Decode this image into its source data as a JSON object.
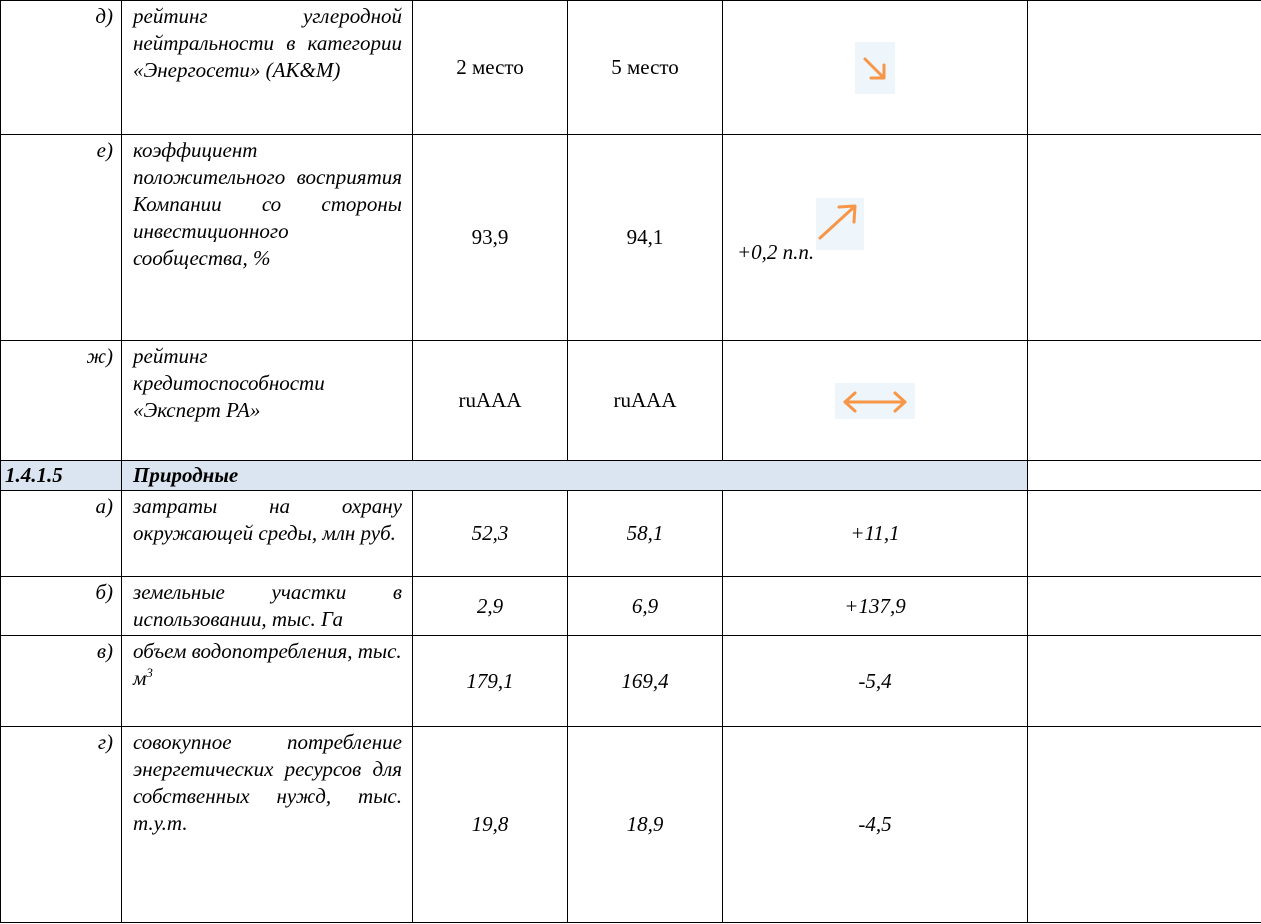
{
  "rows": [
    {
      "num": "д)",
      "desc": "рейтинг углеродной нейтральности в категории «Энергосети» (AK&M)",
      "prev": "2 место",
      "curr": "5 место",
      "change_text": "",
      "trend_icon": "arrow-down-right-icon"
    },
    {
      "num": "е)",
      "desc": "коэффициент положительного восприятия Компании со стороны инвестиционного сообщества, %",
      "prev": "93,9",
      "curr": "94,1",
      "change_text": "+0,2 п.п.",
      "trend_icon": "arrow-up-right-icon"
    },
    {
      "num": "ж)",
      "desc": "рейтинг кредитоспособности «Эксперт РА»",
      "prev": "ruAAA",
      "curr": "ruAAA",
      "change_text": "",
      "trend_icon": "arrow-left-right-icon"
    }
  ],
  "section": {
    "code": "1.4.1.5",
    "title": "Природные"
  },
  "natural_rows": [
    {
      "num": "а)",
      "desc": "затраты на охрану окружающей среды, млн руб.",
      "prev": "52,3",
      "curr": "58,1",
      "change": "+11,1"
    },
    {
      "num": "б)",
      "desc": "земельные участки в использовании, тыс. Га",
      "prev": "2,9",
      "curr": "6,9",
      "change": "+137,9"
    },
    {
      "num": "в)",
      "desc_main": "объем водопотребления, тыс. м",
      "desc_sup": "3",
      "prev": "179,1",
      "curr": "169,4",
      "change": "-5,4"
    },
    {
      "num": "г)",
      "desc": "совокупное потребление энергетических ресурсов для собственных нужд, тыс. т.у.т.",
      "prev": "19,8",
      "curr": "18,9",
      "change": "-4,5"
    }
  ],
  "colors": {
    "section_bg": "#dbe5f1",
    "arrow": "#f79646",
    "arrow_bg": "#eef5fb"
  }
}
